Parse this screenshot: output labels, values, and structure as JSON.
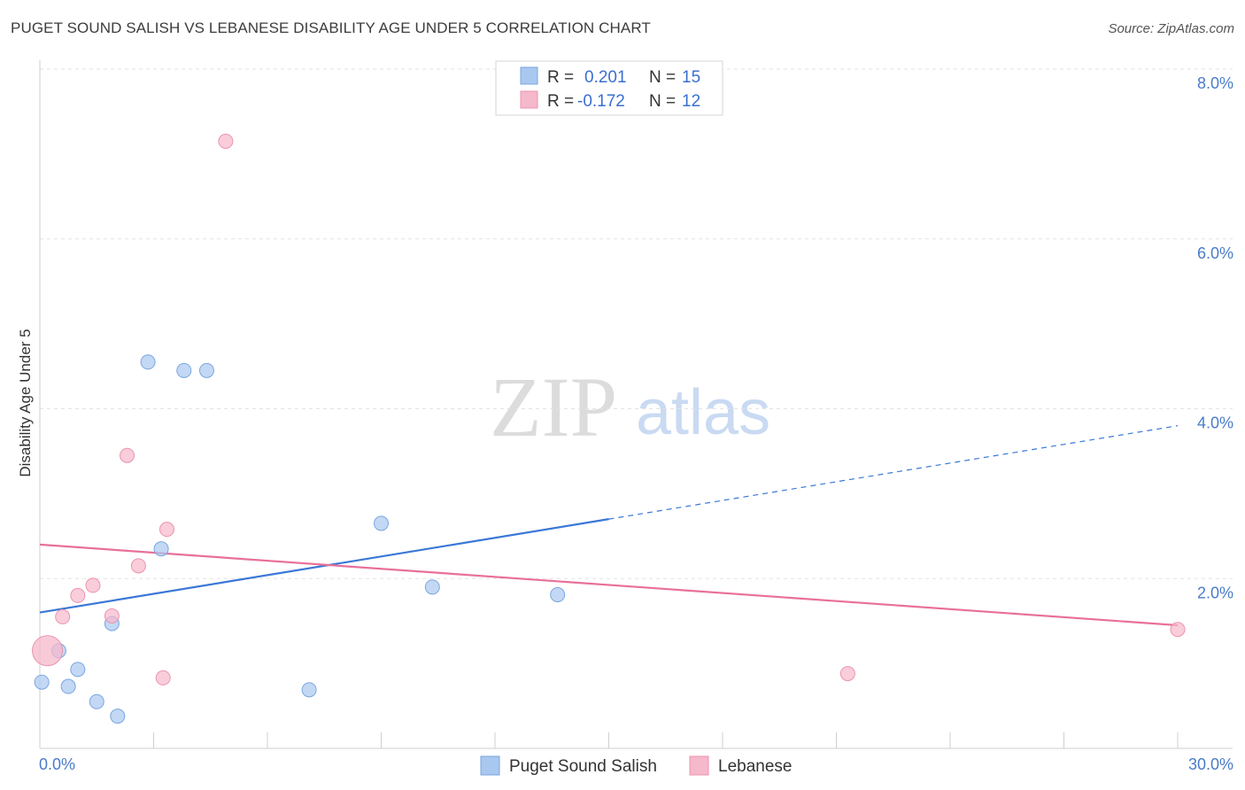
{
  "header": {
    "title": "PUGET SOUND SALISH VS LEBANESE DISABILITY AGE UNDER 5 CORRELATION CHART",
    "source": "Source: ZipAtlas.com"
  },
  "watermark": {
    "zip": "ZIP",
    "atlas": "atlas"
  },
  "legend_top": {
    "rows": [
      {
        "r_label": "R =",
        "r_value": "0.201",
        "n_label": "N =",
        "n_value": "15",
        "color": "#a9c8f0"
      },
      {
        "r_label": "R =",
        "r_value": "-0.172",
        "n_label": "N =",
        "n_value": "12",
        "color": "#f6b8cb"
      }
    ]
  },
  "legend_bottom": {
    "items": [
      {
        "label": "Puget Sound Salish",
        "color": "#a9c8f0"
      },
      {
        "label": "Lebanese",
        "color": "#f6b8cb"
      }
    ]
  },
  "chart_data": {
    "type": "scatter",
    "ylabel": "Disability Age Under 5",
    "xlabel": "",
    "xlim": [
      0,
      30
    ],
    "ylim": [
      0,
      8
    ],
    "x_tick_labels": [
      {
        "value": 0,
        "label": "0.0%"
      },
      {
        "value": 30,
        "label": "30.0%"
      }
    ],
    "y_tick_labels": [
      {
        "value": 2,
        "label": "2.0%"
      },
      {
        "value": 4,
        "label": "4.0%"
      },
      {
        "value": 6,
        "label": "6.0%"
      },
      {
        "value": 8,
        "label": "8.0%"
      }
    ],
    "grid": true,
    "legend_position": "top-center",
    "series": [
      {
        "name": "Puget Sound Salish",
        "color": "#a9c8f0",
        "stroke": "#7aa6e0",
        "points": [
          {
            "x": 0.05,
            "y": 0.78
          },
          {
            "x": 0.5,
            "y": 1.15
          },
          {
            "x": 0.75,
            "y": 0.73
          },
          {
            "x": 1.0,
            "y": 0.93
          },
          {
            "x": 1.5,
            "y": 0.55
          },
          {
            "x": 1.9,
            "y": 1.47
          },
          {
            "x": 2.05,
            "y": 0.38
          },
          {
            "x": 2.85,
            "y": 4.55
          },
          {
            "x": 3.2,
            "y": 2.35
          },
          {
            "x": 3.8,
            "y": 4.45
          },
          {
            "x": 4.4,
            "y": 4.45
          },
          {
            "x": 7.1,
            "y": 0.69
          },
          {
            "x": 9.0,
            "y": 2.65
          },
          {
            "x": 10.35,
            "y": 1.9
          },
          {
            "x": 13.65,
            "y": 1.81
          }
        ],
        "trend": {
          "x0": 0,
          "y0": 1.6,
          "x1": 15,
          "y1": 2.7,
          "dash_to_x": 30,
          "dash_to_y": 3.8
        }
      },
      {
        "name": "Lebanese",
        "color": "#f6b8cb",
        "stroke": "#ec93ae",
        "points": [
          {
            "x": 0.2,
            "y": 1.15,
            "large": true
          },
          {
            "x": 0.6,
            "y": 1.55
          },
          {
            "x": 1.0,
            "y": 1.8
          },
          {
            "x": 1.4,
            "y": 1.92
          },
          {
            "x": 1.9,
            "y": 1.56
          },
          {
            "x": 2.3,
            "y": 3.45
          },
          {
            "x": 2.6,
            "y": 2.15
          },
          {
            "x": 3.25,
            "y": 0.83
          },
          {
            "x": 3.35,
            "y": 2.58
          },
          {
            "x": 4.9,
            "y": 7.15
          },
          {
            "x": 21.3,
            "y": 0.88
          },
          {
            "x": 30.0,
            "y": 1.4
          }
        ],
        "trend": {
          "x0": 0,
          "y0": 2.4,
          "x1": 30,
          "y1": 1.45
        }
      }
    ]
  }
}
